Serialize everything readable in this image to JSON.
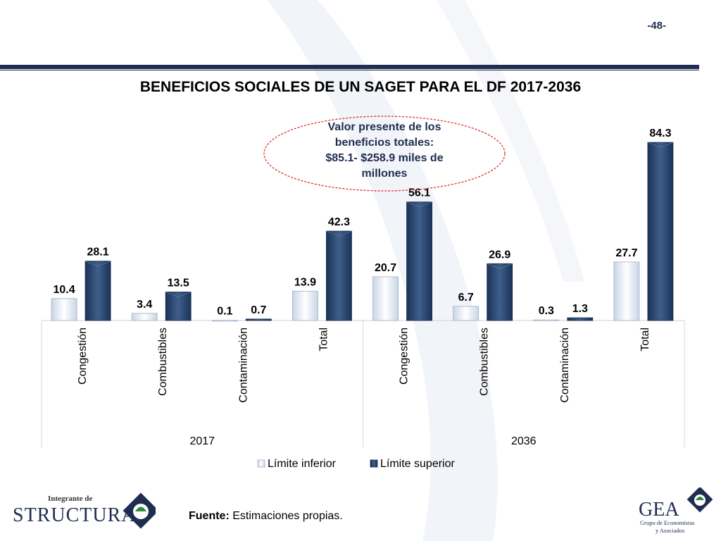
{
  "page_number": "-48-",
  "title": "BENEFICIOS SOCIALES DE UN SAGET PARA EL DF 2017-2036",
  "callout": {
    "lines": [
      "Valor presente de los",
      "beneficios totales:",
      "$85.1- $258.9 miles de",
      "millones"
    ]
  },
  "footer": {
    "source_label": "Fuente:",
    "source_text": " Estimaciones propias."
  },
  "logos": {
    "left_small": "Integrante de",
    "left_big": "STRUCTURA",
    "right_big": "GEA",
    "right_line1": "Grupo de Economistas",
    "right_line2": "y Asociados"
  },
  "colors": {
    "lower": "#e4ebf5",
    "upper": "#27466e",
    "accent": "#1f2d50",
    "callout_border": "#e03030"
  },
  "chart_data": {
    "type": "bar",
    "groups": [
      {
        "label": "2017",
        "categories": [
          "Congestión",
          "Combustibles",
          "Contaminación",
          "Total"
        ]
      },
      {
        "label": "2036",
        "categories": [
          "Congestión",
          "Combustibles",
          "Contaminación",
          "Total"
        ]
      }
    ],
    "series": [
      {
        "name": "Límite inferior",
        "values": [
          10.4,
          3.4,
          0.1,
          13.9,
          20.7,
          6.7,
          0.3,
          27.7
        ]
      },
      {
        "name": "Límite superior",
        "values": [
          28.1,
          13.5,
          0.7,
          42.3,
          56.1,
          26.9,
          1.3,
          84.3
        ]
      }
    ],
    "ylim": [
      0,
      90
    ],
    "legend_position": "bottom",
    "grid": false
  }
}
